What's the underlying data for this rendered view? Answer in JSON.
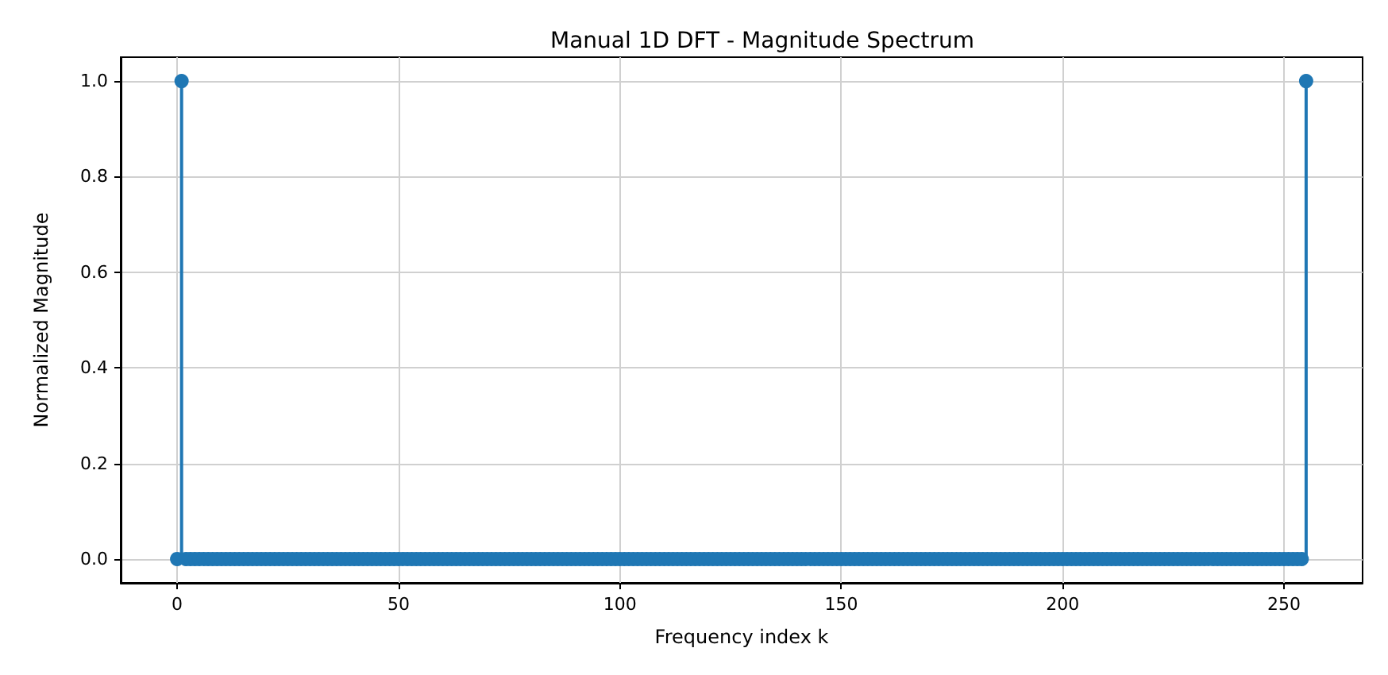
{
  "chart_data": {
    "type": "lollipop",
    "title": "Manual 1D DFT - Magnitude Spectrum",
    "xlabel": "Frequency index k",
    "ylabel": "Normalized Magnitude",
    "xlim": [
      -12.75,
      267.75
    ],
    "xticks": [
      0,
      50,
      100,
      150,
      200,
      250
    ],
    "ylim": [
      -0.05,
      1.05
    ],
    "yticks": [
      {
        "value": 0,
        "label": "0.0"
      },
      {
        "value": 0.2,
        "label": "0.2"
      },
      {
        "value": 0.4,
        "label": "0.4"
      },
      {
        "value": 0.6,
        "label": "0.6"
      },
      {
        "value": 0.8,
        "label": "0.8"
      },
      {
        "value": 1,
        "label": "1.0"
      }
    ],
    "grid": true,
    "marker": "circle",
    "series": [
      {
        "color": "#1f77b4",
        "x": [
          0,
          1,
          2,
          3,
          4,
          5,
          6,
          7,
          8,
          9,
          10,
          11,
          12,
          13,
          14,
          15,
          16,
          17,
          18,
          19,
          20,
          21,
          22,
          23,
          24,
          25,
          26,
          27,
          28,
          29,
          30,
          31,
          32,
          33,
          34,
          35,
          36,
          37,
          38,
          39,
          40,
          41,
          42,
          43,
          44,
          45,
          46,
          47,
          48,
          49,
          50,
          51,
          52,
          53,
          54,
          55,
          56,
          57,
          58,
          59,
          60,
          61,
          62,
          63,
          64,
          65,
          66,
          67,
          68,
          69,
          70,
          71,
          72,
          73,
          74,
          75,
          76,
          77,
          78,
          79,
          80,
          81,
          82,
          83,
          84,
          85,
          86,
          87,
          88,
          89,
          90,
          91,
          92,
          93,
          94,
          95,
          96,
          97,
          98,
          99,
          100,
          101,
          102,
          103,
          104,
          105,
          106,
          107,
          108,
          109,
          110,
          111,
          112,
          113,
          114,
          115,
          116,
          117,
          118,
          119,
          120,
          121,
          122,
          123,
          124,
          125,
          126,
          127,
          128,
          129,
          130,
          131,
          132,
          133,
          134,
          135,
          136,
          137,
          138,
          139,
          140,
          141,
          142,
          143,
          144,
          145,
          146,
          147,
          148,
          149,
          150,
          151,
          152,
          153,
          154,
          155,
          156,
          157,
          158,
          159,
          160,
          161,
          162,
          163,
          164,
          165,
          166,
          167,
          168,
          169,
          170,
          171,
          172,
          173,
          174,
          175,
          176,
          177,
          178,
          179,
          180,
          181,
          182,
          183,
          184,
          185,
          186,
          187,
          188,
          189,
          190,
          191,
          192,
          193,
          194,
          195,
          196,
          197,
          198,
          199,
          200,
          201,
          202,
          203,
          204,
          205,
          206,
          207,
          208,
          209,
          210,
          211,
          212,
          213,
          214,
          215,
          216,
          217,
          218,
          219,
          220,
          221,
          222,
          223,
          224,
          225,
          226,
          227,
          228,
          229,
          230,
          231,
          232,
          233,
          234,
          235,
          236,
          237,
          238,
          239,
          240,
          241,
          242,
          243,
          244,
          245,
          246,
          247,
          248,
          249,
          250,
          251,
          252,
          253,
          254,
          255
        ],
        "values": [
          0,
          1,
          0,
          0,
          0,
          0,
          0,
          0,
          0,
          0,
          0,
          0,
          0,
          0,
          0,
          0,
          0,
          0,
          0,
          0,
          0,
          0,
          0,
          0,
          0,
          0,
          0,
          0,
          0,
          0,
          0,
          0,
          0,
          0,
          0,
          0,
          0,
          0,
          0,
          0,
          0,
          0,
          0,
          0,
          0,
          0,
          0,
          0,
          0,
          0,
          0,
          0,
          0,
          0,
          0,
          0,
          0,
          0,
          0,
          0,
          0,
          0,
          0,
          0,
          0,
          0,
          0,
          0,
          0,
          0,
          0,
          0,
          0,
          0,
          0,
          0,
          0,
          0,
          0,
          0,
          0,
          0,
          0,
          0,
          0,
          0,
          0,
          0,
          0,
          0,
          0,
          0,
          0,
          0,
          0,
          0,
          0,
          0,
          0,
          0,
          0,
          0,
          0,
          0,
          0,
          0,
          0,
          0,
          0,
          0,
          0,
          0,
          0,
          0,
          0,
          0,
          0,
          0,
          0,
          0,
          0,
          0,
          0,
          0,
          0,
          0,
          0,
          0,
          0,
          0,
          0,
          0,
          0,
          0,
          0,
          0,
          0,
          0,
          0,
          0,
          0,
          0,
          0,
          0,
          0,
          0,
          0,
          0,
          0,
          0,
          0,
          0,
          0,
          0,
          0,
          0,
          0,
          0,
          0,
          0,
          0,
          0,
          0,
          0,
          0,
          0,
          0,
          0,
          0,
          0,
          0,
          0,
          0,
          0,
          0,
          0,
          0,
          0,
          0,
          0,
          0,
          0,
          0,
          0,
          0,
          0,
          0,
          0,
          0,
          0,
          0,
          0,
          0,
          0,
          0,
          0,
          0,
          0,
          0,
          0,
          0,
          0,
          0,
          0,
          0,
          0,
          0,
          0,
          0,
          0,
          0,
          0,
          0,
          0,
          0,
          0,
          0,
          0,
          0,
          0,
          0,
          0,
          0,
          0,
          0,
          0,
          0,
          0,
          0,
          0,
          0,
          0,
          0,
          0,
          0,
          0,
          0,
          0,
          0,
          0,
          0,
          0,
          0,
          0,
          0,
          0,
          0,
          0,
          0,
          0,
          0,
          0,
          0,
          0,
          0,
          1
        ]
      }
    ]
  }
}
